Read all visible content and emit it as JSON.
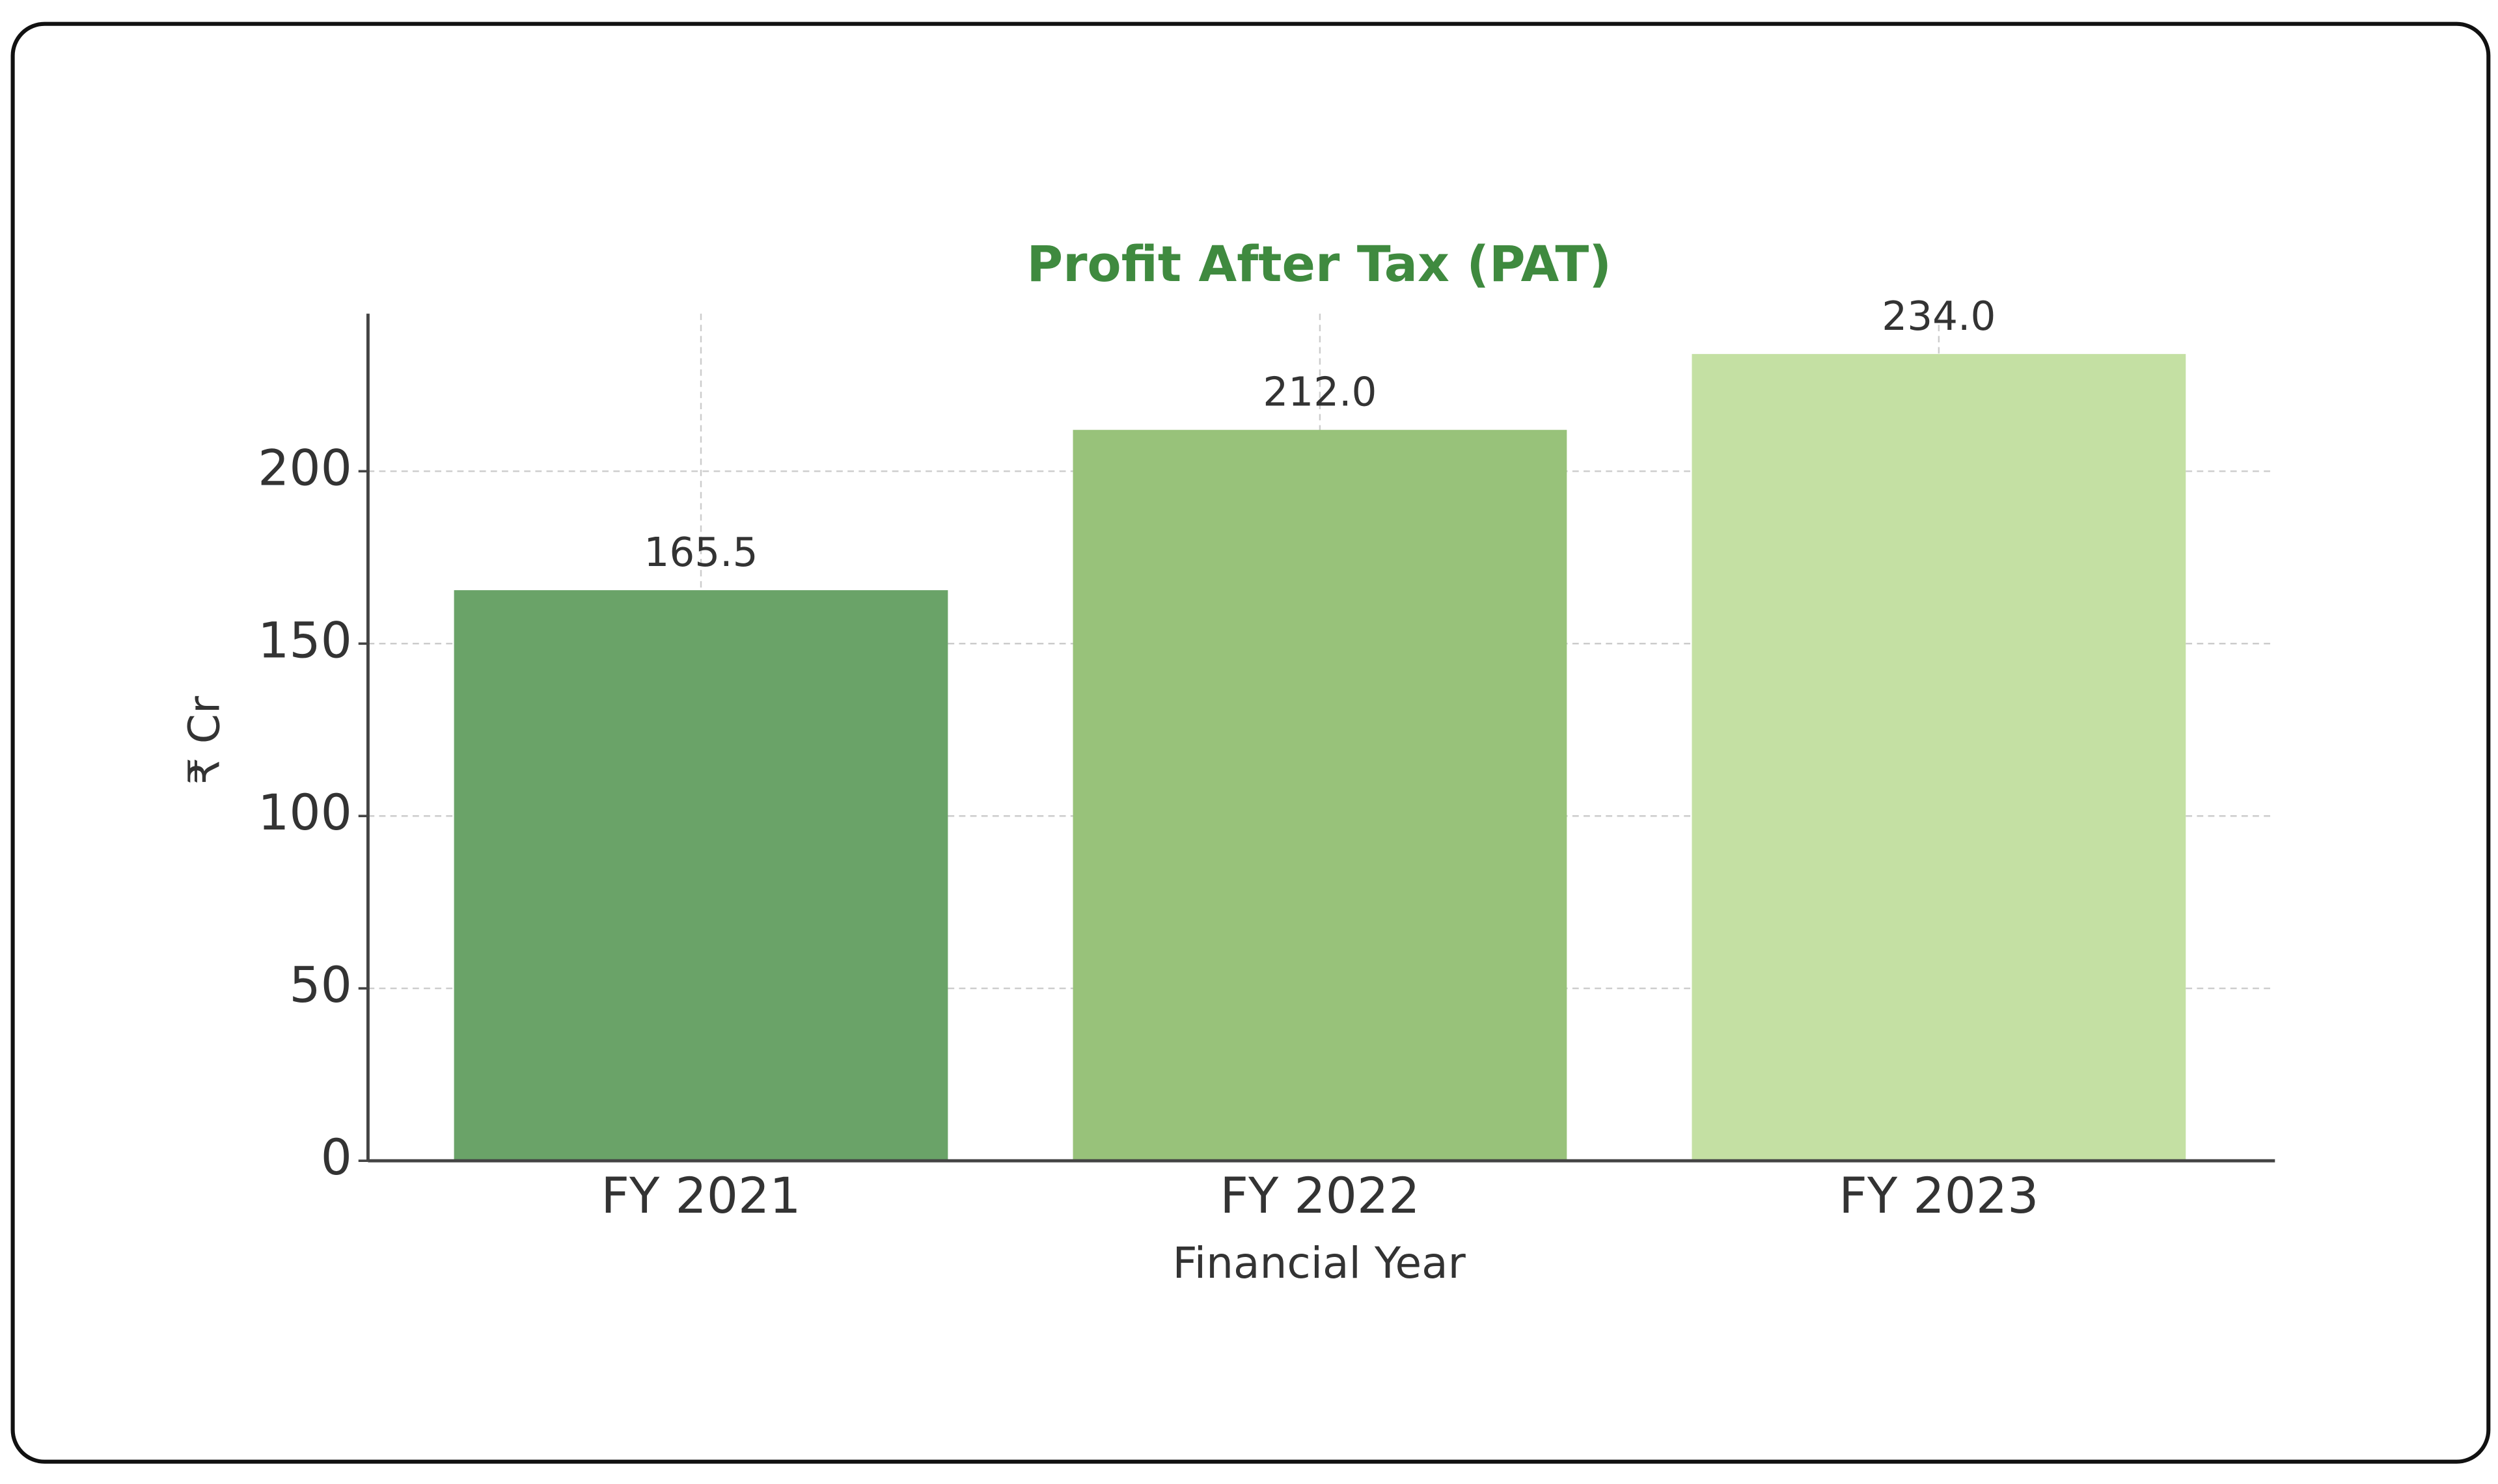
{
  "chart_data": {
    "type": "bar",
    "title": "Profit After Tax (PAT)",
    "x_label": "Financial Year",
    "y_label": "₹ Cr",
    "categories": [
      "FY 2021",
      "FY 2022",
      "FY 2023"
    ],
    "values": [
      165.5,
      212.0,
      234.0
    ],
    "value_labels": [
      "165.5",
      "212.0",
      "234.0"
    ],
    "colors": [
      "#6aa368",
      "#98c27a",
      "#c4e0a3"
    ],
    "ylim": [
      0,
      245.7
    ],
    "yticks": [
      0,
      50,
      100,
      150,
      200
    ],
    "grid": true
  }
}
